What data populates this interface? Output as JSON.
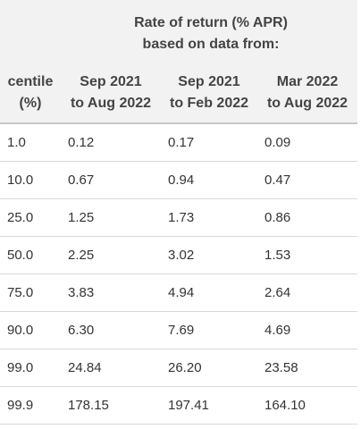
{
  "header": {
    "super_title_line1": "Rate of return (% APR)",
    "super_title_line2": "based on data from:",
    "columns": [
      {
        "line1": "centile",
        "line2": "(%)"
      },
      {
        "line1": "Sep 2021",
        "line2": "to Aug 2022"
      },
      {
        "line1": "Sep 2021",
        "line2": "to Feb 2022"
      },
      {
        "line1": "Mar 2022",
        "line2": "to Aug 2022"
      }
    ]
  },
  "rows": [
    [
      "1.0",
      "0.12",
      "0.17",
      "0.09"
    ],
    [
      "10.0",
      "0.67",
      "0.94",
      "0.47"
    ],
    [
      "25.0",
      "1.25",
      "1.73",
      "0.86"
    ],
    [
      "50.0",
      "2.25",
      "3.02",
      "1.53"
    ],
    [
      "75.0",
      "3.83",
      "4.94",
      "2.64"
    ],
    [
      "90.0",
      "6.30",
      "7.69",
      "4.69"
    ],
    [
      "99.0",
      "24.84",
      "26.20",
      "23.58"
    ],
    [
      "99.9",
      "178.15",
      "197.41",
      "164.10"
    ]
  ]
}
